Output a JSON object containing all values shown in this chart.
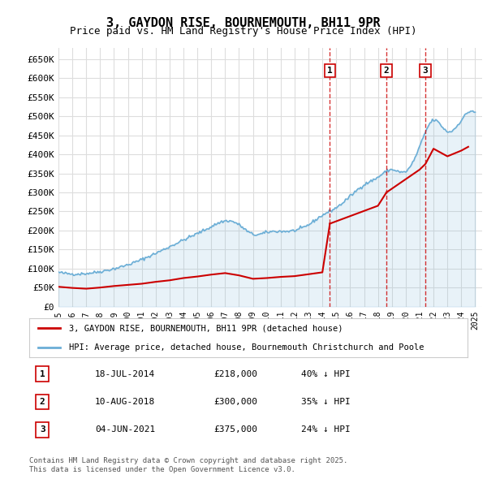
{
  "title": "3, GAYDON RISE, BOURNEMOUTH, BH11 9PR",
  "subtitle": "Price paid vs. HM Land Registry's House Price Index (HPI)",
  "hpi_label": "HPI: Average price, detached house, Bournemouth Christchurch and Poole",
  "property_label": "3, GAYDON RISE, BOURNEMOUTH, BH11 9PR (detached house)",
  "footer": "Contains HM Land Registry data © Crown copyright and database right 2025.\nThis data is licensed under the Open Government Licence v3.0.",
  "sales": [
    {
      "num": 1,
      "date": "18-JUL-2014",
      "price": 218000,
      "hpi_diff": "40% ↓ HPI",
      "year": 2014.54
    },
    {
      "num": 2,
      "date": "10-AUG-2018",
      "price": 300000,
      "hpi_diff": "35% ↓ HPI",
      "year": 2018.61
    },
    {
      "num": 3,
      "date": "04-JUN-2021",
      "price": 375000,
      "hpi_diff": "24% ↓ HPI",
      "year": 2021.42
    }
  ],
  "hpi_color": "#6baed6",
  "property_color": "#cc0000",
  "dashed_color": "#cc0000",
  "ylim": [
    0,
    680000
  ],
  "yticks": [
    0,
    50000,
    100000,
    150000,
    200000,
    250000,
    300000,
    350000,
    400000,
    450000,
    500000,
    550000,
    600000,
    650000
  ],
  "ylabel_format": "£{0}K",
  "background_color": "#ffffff",
  "grid_color": "#dddddd",
  "xlim_start": 1995,
  "xlim_end": 2025.5
}
